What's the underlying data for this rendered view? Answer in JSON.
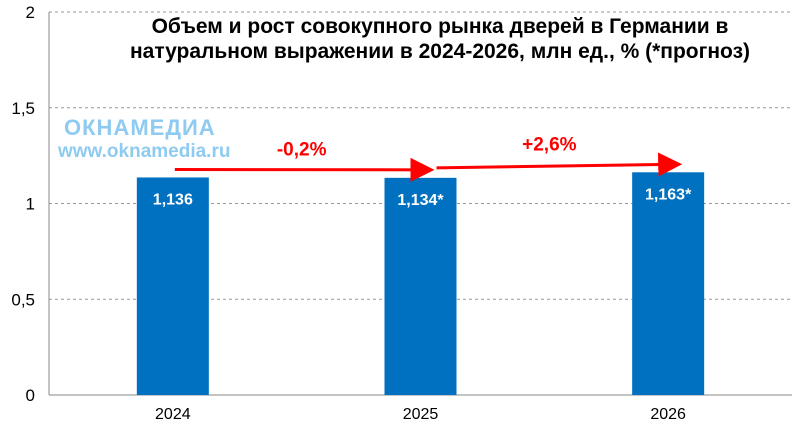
{
  "chart_data": {
    "type": "bar",
    "title": "Объем и рост совокупного рынка дверей в Германии в натуральном выражении в 2024-2026, млн ед., % (*прогноз)",
    "categories": [
      "2024",
      "2025",
      "2026"
    ],
    "values": [
      1.136,
      1.134,
      1.163
    ],
    "data_labels": [
      "1,136",
      "1,134*",
      "1,163*"
    ],
    "growth_labels": [
      "-0,2%",
      "+2,6%"
    ],
    "ylim": [
      0,
      2
    ],
    "yticks": [
      0,
      0.5,
      1,
      1.5,
      2
    ],
    "ytick_labels": [
      "0",
      "0,5",
      "1",
      "1,5",
      "2"
    ],
    "grid": true,
    "bar_color": "#0070c0",
    "arrow_color": "#ff0000"
  },
  "watermark": {
    "brand": "ОКНАМЕДИА",
    "url": "www.oknamedia.ru"
  }
}
